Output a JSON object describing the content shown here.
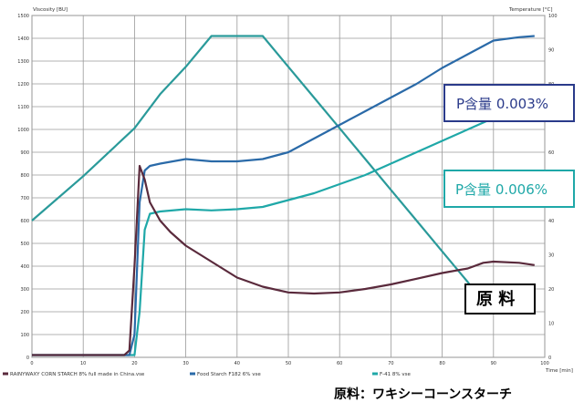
{
  "chart_data": {
    "type": "line",
    "y_left_label": "Viscosity [BU]",
    "y_right_label": "Temperature [°C]",
    "x_label": "Time [min]",
    "x_ticks": [
      0,
      10,
      20,
      30,
      40,
      50,
      60,
      70,
      80,
      90,
      100
    ],
    "y_left_ticks": [
      0,
      100,
      200,
      300,
      400,
      500,
      600,
      700,
      800,
      900,
      1000,
      1100,
      1200,
      1300,
      1400,
      1500
    ],
    "y_right_ticks": [
      0,
      10,
      20,
      30,
      40,
      50,
      60,
      70,
      80,
      90,
      100
    ],
    "xlim": [
      0,
      100
    ],
    "ylim_left": [
      0,
      1500
    ],
    "ylim_right": [
      0,
      100
    ],
    "grid": true,
    "legend_position": "bottom",
    "series": [
      {
        "name": "RAINYWAXY CORN STARCH 8% full made in China.vse",
        "axis": "left",
        "color": "#5a2a3c",
        "x": [
          0,
          18,
          19,
          20,
          21,
          22,
          23,
          25,
          27,
          30,
          35,
          40,
          45,
          50,
          55,
          60,
          65,
          70,
          75,
          80,
          85,
          88,
          90,
          95,
          98
        ],
        "y": [
          10,
          10,
          30,
          400,
          840,
          780,
          680,
          600,
          550,
          490,
          420,
          350,
          310,
          285,
          280,
          285,
          300,
          320,
          345,
          370,
          390,
          415,
          420,
          415,
          405
        ]
      },
      {
        "name": "Food Starch F182 6% vse",
        "axis": "left",
        "color": "#2a6aa8",
        "x": [
          0,
          19,
          20,
          21,
          22,
          23,
          25,
          30,
          35,
          40,
          45,
          50,
          55,
          60,
          65,
          70,
          75,
          80,
          85,
          90,
          95,
          98
        ],
        "y": [
          10,
          10,
          100,
          680,
          820,
          840,
          850,
          870,
          860,
          860,
          870,
          900,
          960,
          1020,
          1080,
          1140,
          1200,
          1270,
          1330,
          1390,
          1405,
          1410
        ]
      },
      {
        "name": "F-41 8% vse",
        "axis": "left",
        "color": "#1fa8a8",
        "x": [
          0,
          20,
          21,
          22,
          23,
          25,
          30,
          35,
          40,
          45,
          50,
          55,
          60,
          65,
          70,
          75,
          80,
          85,
          90,
          95,
          98
        ],
        "y": [
          10,
          10,
          200,
          560,
          630,
          640,
          650,
          645,
          650,
          660,
          690,
          720,
          760,
          800,
          850,
          900,
          950,
          1000,
          1050,
          1060,
          1060
        ]
      },
      {
        "name": "Temperature",
        "axis": "right",
        "color": "#2a9a9a",
        "x": [
          0,
          10,
          20,
          25,
          30,
          35,
          40,
          45,
          50,
          55,
          60,
          65,
          70,
          75,
          80,
          85,
          88,
          90,
          95,
          98
        ],
        "y": [
          40,
          53,
          67,
          77,
          85,
          94,
          94,
          94,
          85,
          76,
          67,
          58,
          49,
          40,
          31,
          22,
          16,
          15,
          15,
          15
        ]
      }
    ]
  },
  "callouts": {
    "p_low": "P含量 0.003%",
    "p_high": "P含量 0.006%",
    "raw": "原 料"
  },
  "caption": "原料：ワキシーコーンスターチ",
  "colors": {
    "p_low_text": "#2a3a8a",
    "p_high_text": "#1fa8a8",
    "grid": "#9a9a9a"
  }
}
